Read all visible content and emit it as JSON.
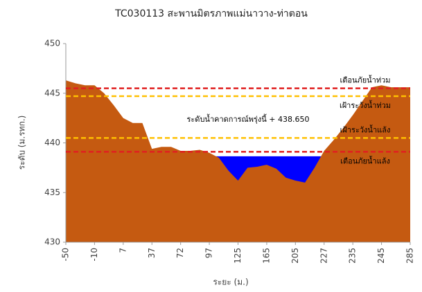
{
  "chart_data": {
    "type": "area",
    "title": "TC030113 สะพานมิตรภาพแม่นาวาง-ท่าตอน",
    "x_label": "ระยะ (ม.)",
    "y_label": "ระดับ (ม.รทก.)",
    "categories": [
      "-50",
      null,
      null,
      "-10",
      null,
      null,
      "7",
      null,
      null,
      "37",
      null,
      null,
      "72",
      null,
      null,
      "97",
      null,
      null,
      "125",
      null,
      null,
      "165",
      null,
      null,
      "205",
      null,
      null,
      "227",
      null,
      null,
      "235",
      null,
      null,
      "245",
      null,
      null,
      "285"
    ],
    "values": [
      446.3,
      446.0,
      445.8,
      445.8,
      445.0,
      443.8,
      442.5,
      442.0,
      442.0,
      439.4,
      439.6,
      439.6,
      439.2,
      439.2,
      439.3,
      439.0,
      438.5,
      437.2,
      436.2,
      437.5,
      437.6,
      437.8,
      437.4,
      436.5,
      436.2,
      436.0,
      437.5,
      439.2,
      440.3,
      441.5,
      442.8,
      444.2,
      445.6,
      445.8,
      445.6,
      445.6,
      445.6
    ],
    "color": "#c55a11",
    "water": {
      "value": 438.65,
      "label": "ระดับน้ำคาดการณ์พรุ่งนี้ + 438.650",
      "color": "#0000ff"
    },
    "thresholds": [
      {
        "label": "เตือนภัยน้ำท่วม",
        "value": 445.5,
        "color": "#e02020"
      },
      {
        "label": "เฝ้าระวังน้ำท่วม",
        "value": 444.7,
        "color": "#ffc000"
      },
      {
        "label": "เฝ้าระวังน้ำแล้ง",
        "value": 440.5,
        "color": "#ffc000"
      },
      {
        "label": "เตือนภัยน้ำแล้ง",
        "value": 439.1,
        "color": "#e02020"
      }
    ],
    "ylim": [
      430,
      450
    ],
    "yticks": [
      430,
      435,
      440,
      445,
      450
    ]
  }
}
